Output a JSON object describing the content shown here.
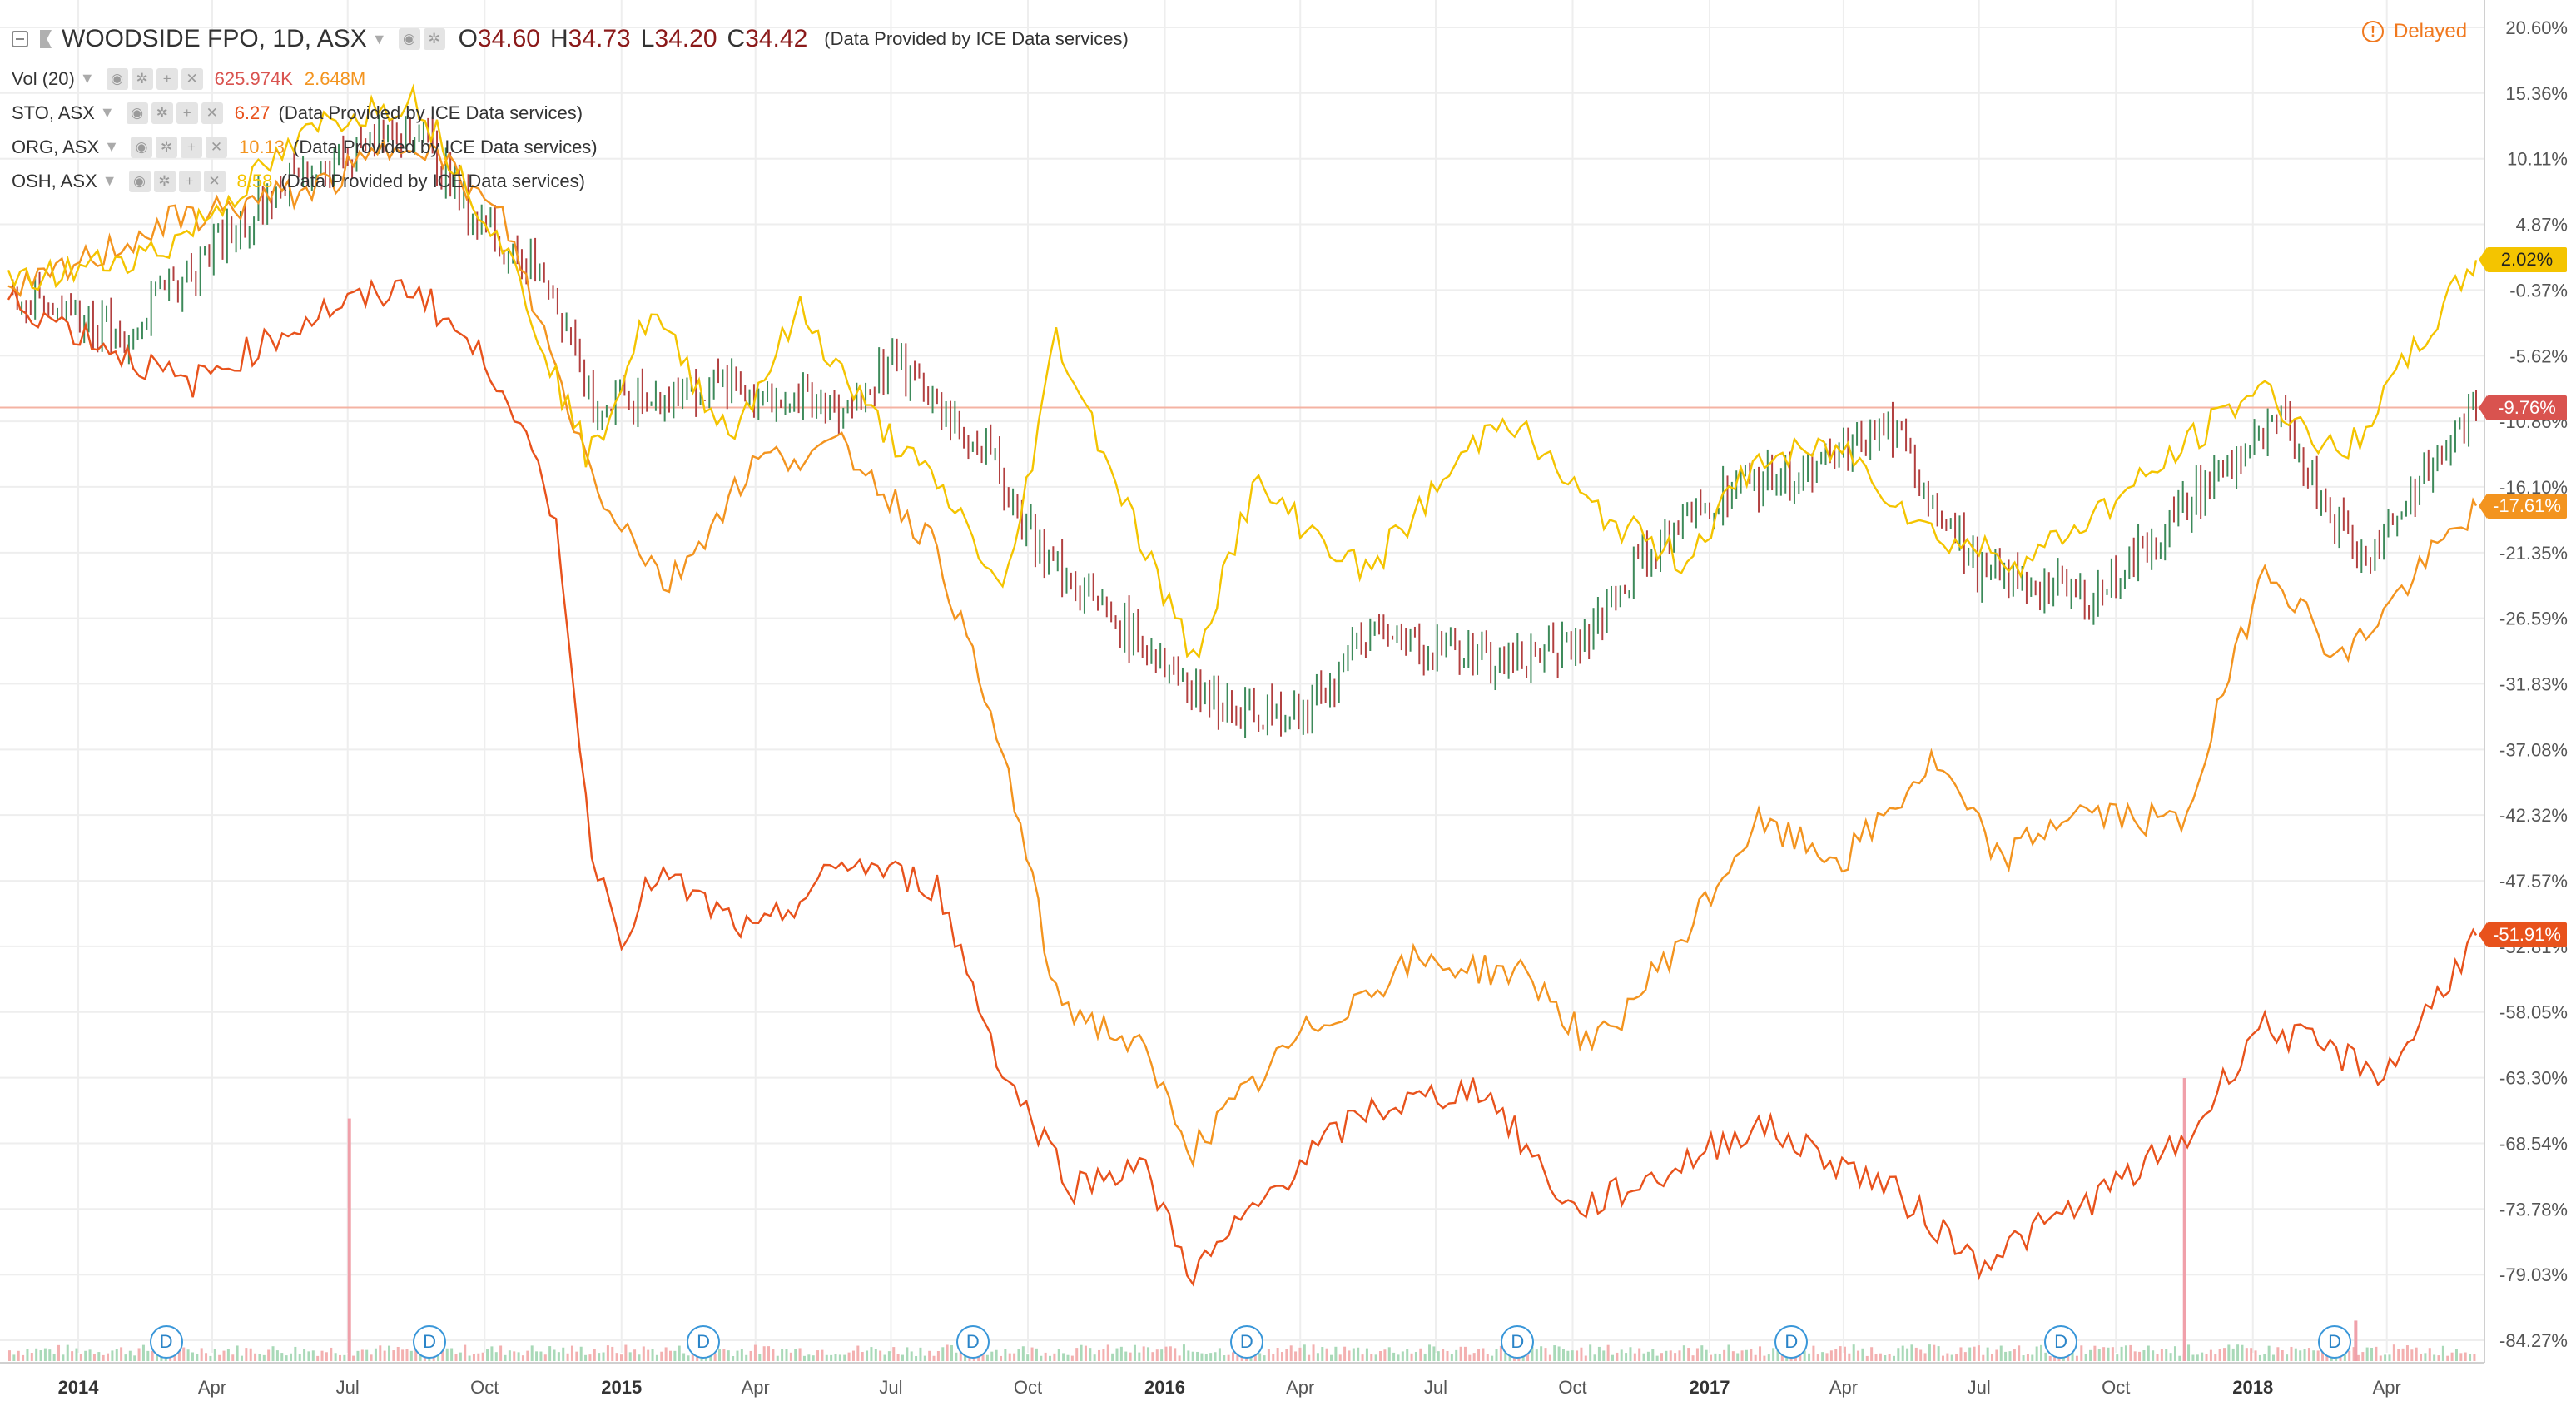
{
  "symbol": {
    "title": "WOODSIDE FPO, 1D, ASX",
    "open_label": "O",
    "open": "34.60",
    "high_label": "H",
    "high": "34.73",
    "low_label": "L",
    "low": "34.20",
    "close_label": "C",
    "close": "34.42",
    "source": "(Data Provided by ICE Data services)"
  },
  "delayed_label": "Delayed",
  "indicators": [
    {
      "name": "Vol (20)",
      "value": "625.974K",
      "value2": "2.648M",
      "color": "#e8521c"
    },
    {
      "name": "STO, ASX",
      "value": "6.27",
      "source": "(Data Provided by ICE Data services)",
      "color": "#e8521c"
    },
    {
      "name": "ORG, ASX",
      "value": "10.13",
      "source": "(Data Provided by ICE Data services)",
      "color": "#f3941f"
    },
    {
      "name": "OSH, ASX",
      "value": "8.58",
      "source": "(Data Provided by ICE Data services)",
      "color": "#f4c400"
    }
  ],
  "price_tags": [
    {
      "value": "2.02%",
      "style": "yellow"
    },
    {
      "value": "-9.76%",
      "style": "brick"
    },
    {
      "value": "-17.61%",
      "style": "orange"
    },
    {
      "value": "-51.91%",
      "style": "red"
    }
  ],
  "dividend_marker": "D",
  "chart_data": {
    "type": "line",
    "yaxis": {
      "unit": "%",
      "ticks": [
        "20.60%",
        "15.36%",
        "10.11%",
        "4.87%",
        "-0.37%",
        "-5.62%",
        "-10.86%",
        "-16.10%",
        "-21.35%",
        "-26.59%",
        "-31.83%",
        "-37.08%",
        "-42.32%",
        "-47.57%",
        "-52.81%",
        "-58.05%",
        "-63.30%",
        "-68.54%",
        "-73.78%",
        "-79.03%",
        "-84.27%"
      ],
      "ylim": [
        -84.27,
        20.6
      ]
    },
    "xaxis": {
      "ticks": [
        "2014",
        "Apr",
        "Jul",
        "Oct",
        "2015",
        "Apr",
        "Jul",
        "Oct",
        "2016",
        "Apr",
        "Jul",
        "Oct",
        "2017",
        "Apr",
        "Jul",
        "Oct",
        "2018",
        "Apr"
      ],
      "bold_ticks": [
        "2014",
        "2015",
        "2016",
        "2017",
        "2018"
      ],
      "range": [
        "2013-11-15",
        "2018-05-31"
      ]
    },
    "grid": true,
    "series": [
      {
        "name": "WOODSIDE FPO",
        "kind": "candles",
        "color": "#3c3c3c",
        "points": [
          [
            "2013-11-15",
            0
          ],
          [
            "2014-02-01",
            -4
          ],
          [
            "2014-05-15",
            8
          ],
          [
            "2014-08-15",
            13
          ],
          [
            "2014-09-20",
            6
          ],
          [
            "2014-11-15",
            0
          ],
          [
            "2014-12-15",
            -10
          ],
          [
            "2015-03-01",
            -8
          ],
          [
            "2015-06-01",
            -10
          ],
          [
            "2015-07-01",
            -6
          ],
          [
            "2015-09-01",
            -13
          ],
          [
            "2015-10-15",
            -22
          ],
          [
            "2015-12-01",
            -27
          ],
          [
            "2016-02-01",
            -33
          ],
          [
            "2016-04-01",
            -35
          ],
          [
            "2016-05-15",
            -28
          ],
          [
            "2016-08-15",
            -30
          ],
          [
            "2016-10-01",
            -29
          ],
          [
            "2016-11-15",
            -22
          ],
          [
            "2017-01-15",
            -16
          ],
          [
            "2017-03-15",
            -15
          ],
          [
            "2017-05-01",
            -11
          ],
          [
            "2017-07-01",
            -23
          ],
          [
            "2017-09-15",
            -25
          ],
          [
            "2017-12-01",
            -16
          ],
          [
            "2018-01-20",
            -11
          ],
          [
            "2018-03-15",
            -22
          ],
          [
            "2018-05-31",
            -9.76
          ]
        ]
      },
      {
        "name": "STO, ASX",
        "kind": "line",
        "color": "#e8521c",
        "points": [
          [
            "2013-11-15",
            -1
          ],
          [
            "2014-03-15",
            -8
          ],
          [
            "2014-06-15",
            -2
          ],
          [
            "2014-08-15",
            0
          ],
          [
            "2014-10-15",
            -8
          ],
          [
            "2014-11-20",
            -20
          ],
          [
            "2014-12-10",
            -44
          ],
          [
            "2014-12-31",
            -52
          ],
          [
            "2015-01-25",
            -47
          ],
          [
            "2015-04-01",
            -52
          ],
          [
            "2015-06-01",
            -46
          ],
          [
            "2015-08-01",
            -48
          ],
          [
            "2015-09-15",
            -63
          ],
          [
            "2015-11-01",
            -72
          ],
          [
            "2015-12-15",
            -70
          ],
          [
            "2016-01-20",
            -79
          ],
          [
            "2016-04-01",
            -70
          ],
          [
            "2016-05-15",
            -66
          ],
          [
            "2016-08-01",
            -64
          ],
          [
            "2016-10-01",
            -74
          ],
          [
            "2016-12-01",
            -71
          ],
          [
            "2017-02-01",
            -67
          ],
          [
            "2017-05-01",
            -72
          ],
          [
            "2017-07-01",
            -78
          ],
          [
            "2017-09-15",
            -73
          ],
          [
            "2017-11-20",
            -68
          ],
          [
            "2018-01-05",
            -59
          ],
          [
            "2018-04-01",
            -63
          ],
          [
            "2018-05-31",
            -51.91
          ]
        ]
      },
      {
        "name": "ORG, ASX",
        "kind": "line",
        "color": "#f3941f",
        "points": [
          [
            "2013-11-15",
            -1
          ],
          [
            "2014-03-01",
            5
          ],
          [
            "2014-06-15",
            8
          ],
          [
            "2014-08-15",
            12
          ],
          [
            "2014-10-15",
            5
          ],
          [
            "2014-12-15",
            -16
          ],
          [
            "2015-02-01",
            -24
          ],
          [
            "2015-04-01",
            -14
          ],
          [
            "2015-06-01",
            -13
          ],
          [
            "2015-08-01",
            -21
          ],
          [
            "2015-09-20",
            -40
          ],
          [
            "2015-10-20",
            -57
          ],
          [
            "2015-12-15",
            -61
          ],
          [
            "2016-01-20",
            -69
          ],
          [
            "2016-04-01",
            -60
          ],
          [
            "2016-06-15",
            -54
          ],
          [
            "2016-09-01",
            -55
          ],
          [
            "2016-10-15",
            -61
          ],
          [
            "2016-12-15",
            -52
          ],
          [
            "2017-02-01",
            -43
          ],
          [
            "2017-04-01",
            -46
          ],
          [
            "2017-06-01",
            -38
          ],
          [
            "2017-07-15",
            -46
          ],
          [
            "2017-09-01",
            -42
          ],
          [
            "2017-11-15",
            -43
          ],
          [
            "2018-01-10",
            -22
          ],
          [
            "2018-03-01",
            -30
          ],
          [
            "2018-05-31",
            -17.61
          ]
        ]
      },
      {
        "name": "OSH, ASX",
        "kind": "line",
        "color": "#f4c400",
        "points": [
          [
            "2013-11-15",
            0
          ],
          [
            "2014-03-01",
            3
          ],
          [
            "2014-06-15",
            13
          ],
          [
            "2014-08-15",
            15
          ],
          [
            "2014-10-15",
            3
          ],
          [
            "2014-12-10",
            -14
          ],
          [
            "2015-01-20",
            -2
          ],
          [
            "2015-03-15",
            -12
          ],
          [
            "2015-05-01",
            -2
          ],
          [
            "2015-06-15",
            -10
          ],
          [
            "2015-08-15",
            -18
          ],
          [
            "2015-09-15",
            -25
          ],
          [
            "2015-10-20",
            -4
          ],
          [
            "2015-12-15",
            -20
          ],
          [
            "2016-01-20",
            -30
          ],
          [
            "2016-03-01",
            -16
          ],
          [
            "2016-05-15",
            -23
          ],
          [
            "2016-08-15",
            -10
          ],
          [
            "2016-10-15",
            -18
          ],
          [
            "2016-12-15",
            -22
          ],
          [
            "2017-02-01",
            -14
          ],
          [
            "2017-04-01",
            -13
          ],
          [
            "2017-06-01",
            -20
          ],
          [
            "2017-08-01",
            -22
          ],
          [
            "2017-10-15",
            -16
          ],
          [
            "2018-01-05",
            -8
          ],
          [
            "2018-03-01",
            -14
          ],
          [
            "2018-05-31",
            2.02
          ]
        ]
      }
    ],
    "volume": {
      "name": "Vol (20)",
      "baseline": "volume bars",
      "spikes": [
        [
          "2014-07-01",
          12
        ],
        [
          "2017-11-15",
          14
        ],
        [
          "2018-03-10",
          2
        ]
      ]
    },
    "dividend_dates": [
      "2014-03-01",
      "2014-08-25",
      "2015-02-25",
      "2015-08-25",
      "2016-02-25",
      "2016-08-25",
      "2017-02-25",
      "2017-08-25",
      "2018-02-25"
    ],
    "reference_line": -9.76
  }
}
